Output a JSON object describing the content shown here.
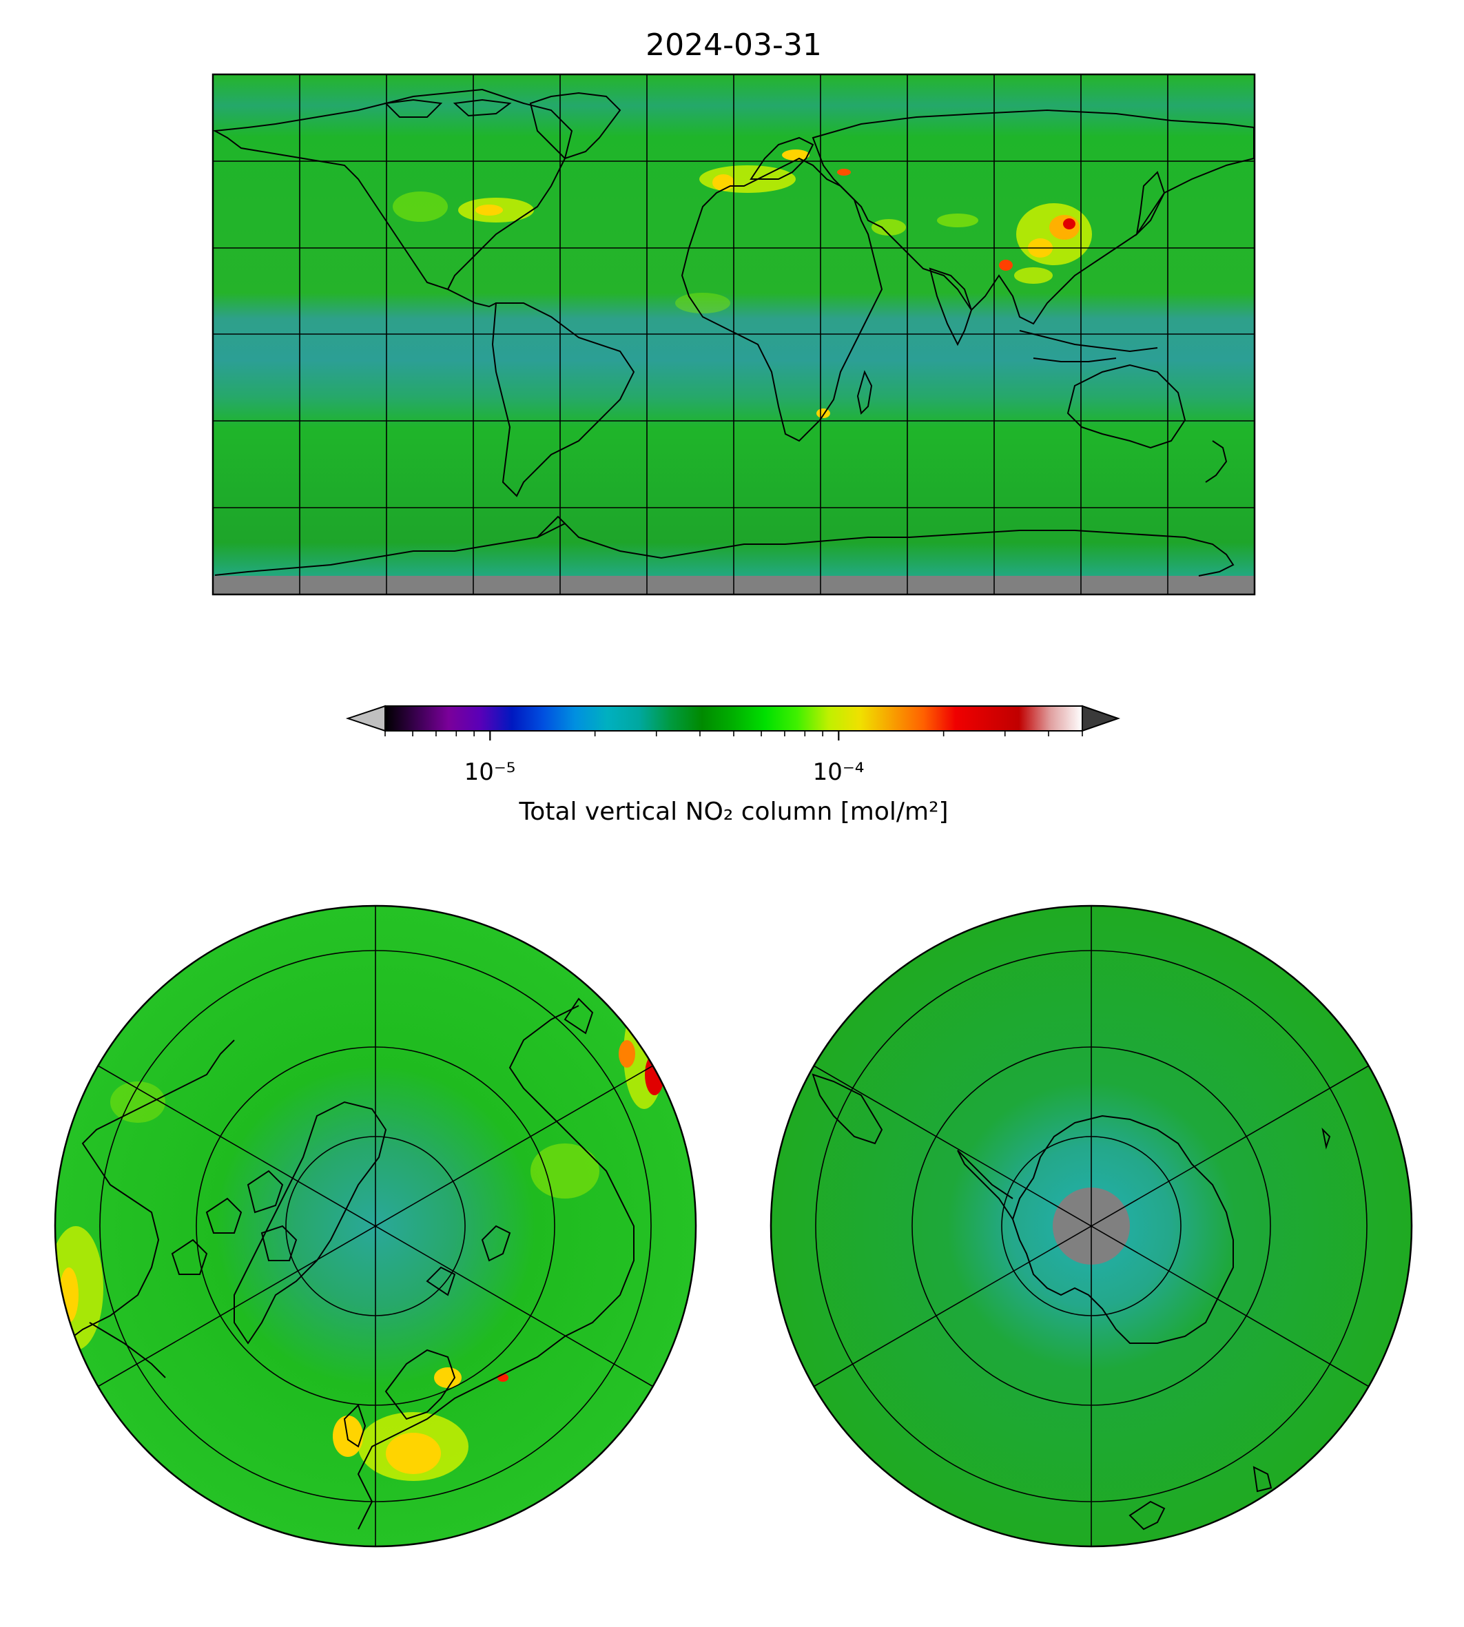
{
  "title": "2024-03-31",
  "colorbar": {
    "label": "Total vertical NO₂ column [mol/m²]",
    "scale": "log",
    "range": [
      5e-06,
      0.0005
    ],
    "extend": "both",
    "tick_labels": [
      "10⁻⁵",
      "10⁻⁴"
    ],
    "tick_values": [
      1e-05,
      0.0001
    ],
    "under_color": "#c0c0c0",
    "over_color": "#3a3a3a",
    "colormap": [
      "#000000",
      "#3a0050",
      "#7a009a",
      "#5a00b8",
      "#0018c0",
      "#0050e0",
      "#0090e0",
      "#00b0c0",
      "#00a8a0",
      "#009a40",
      "#008a00",
      "#00b000",
      "#00e000",
      "#40f000",
      "#c0f000",
      "#f0e000",
      "#f8a000",
      "#ff6000",
      "#f00000",
      "#d80000",
      "#c00000",
      "#e0a0a0",
      "#ffffff"
    ]
  },
  "maps": {
    "global_projection": "Plate Carree",
    "north_polar": "North Polar Stereographic",
    "south_polar": "South Polar Stereographic",
    "background_color": "#22b922",
    "missing_color": "#808080",
    "tropical_color": "#2aa890",
    "hotspot_colors": [
      "#ffd400",
      "#ff0000",
      "#a0f000"
    ]
  }
}
